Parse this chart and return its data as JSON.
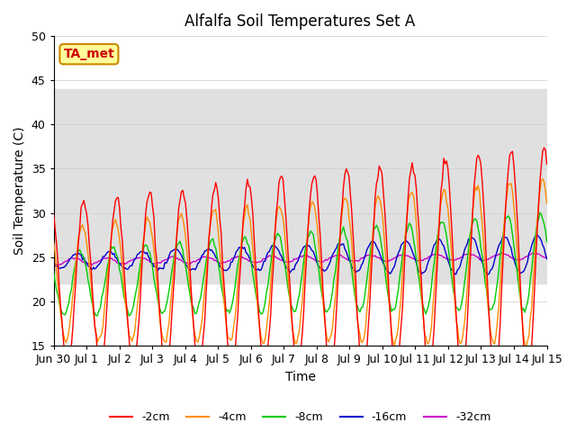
{
  "title": "Alfalfa Soil Temperatures Set A",
  "xlabel": "Time",
  "ylabel": "Soil Temperature (C)",
  "ylim": [
    15,
    50
  ],
  "tick_labels": [
    "Jun 30",
    "Jul 1",
    "Jul 2",
    "Jul 3",
    "Jul 4",
    "Jul 5",
    "Jul 6",
    "Jul 7",
    "Jul 8",
    "Jul 9",
    "Jul 10",
    "Jul 11",
    "Jul 12",
    "Jul 13",
    "Jul 14",
    "Jul 15"
  ],
  "yticks": [
    15,
    20,
    25,
    30,
    35,
    40,
    45,
    50
  ],
  "colors": {
    "-2cm": "#ff0000",
    "-4cm": "#ff8c00",
    "-8cm": "#00cc00",
    "-16cm": "#0000cc",
    "-32cm": "#cc00cc"
  },
  "legend_entries": [
    "-2cm",
    "-4cm",
    "-8cm",
    "-16cm",
    "-32cm"
  ],
  "shaded_band": [
    22,
    44
  ],
  "shaded_color": "#e0e0e0",
  "annotation_text": "TA_met",
  "annotation_color": "#cc0000",
  "annotation_bg": "#ffff99",
  "annotation_border": "#cc8800",
  "background_color": "#ffffff",
  "grid_color": "#cccccc"
}
